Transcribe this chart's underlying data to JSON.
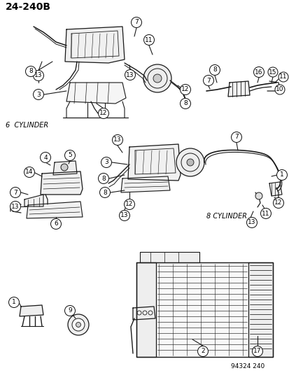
{
  "title": "24-240B",
  "subtitle_code": "94324 240",
  "label_6cyl": "6  CYLINDER",
  "label_8cyl": "8 CYLINDER",
  "bg_color": "#ffffff",
  "text_color": "#000000",
  "line_color": "#1a1a1a",
  "fig_width": 4.14,
  "fig_height": 5.33,
  "dpi": 100
}
